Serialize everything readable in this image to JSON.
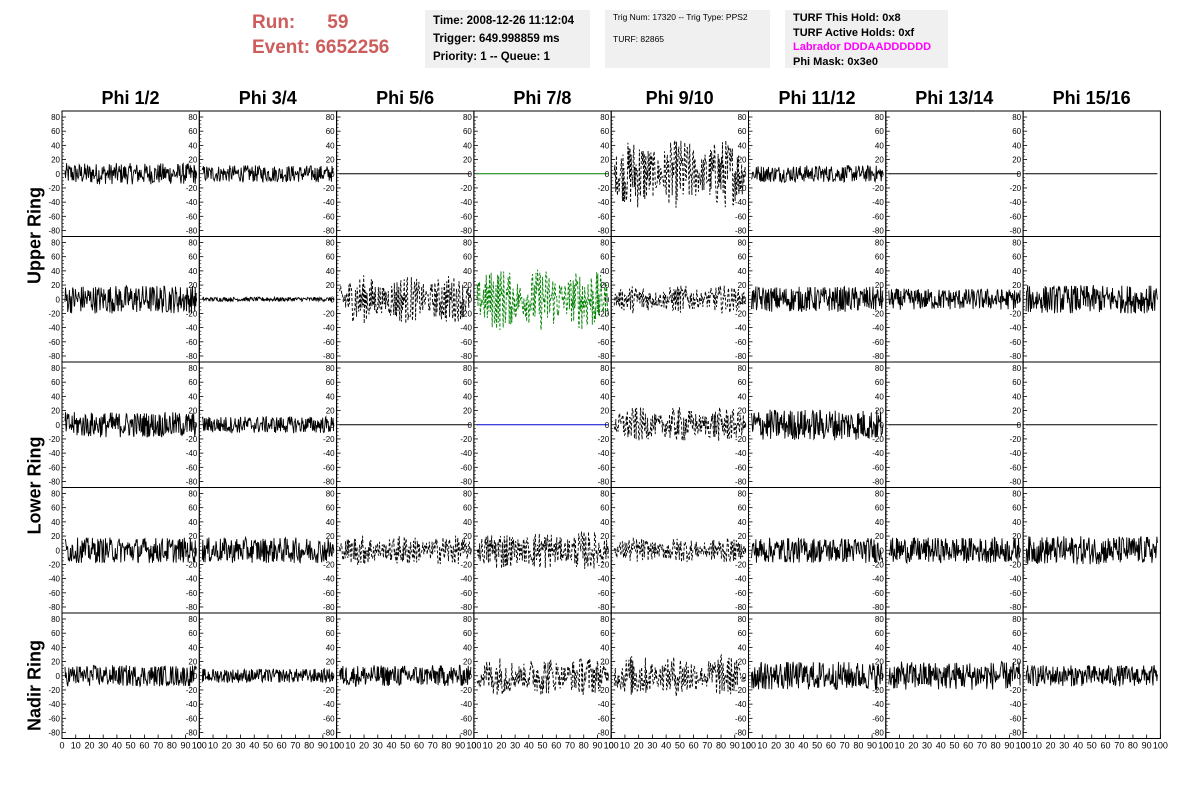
{
  "header": {
    "run_label": "Run:",
    "run_value": "59",
    "event_label": "Event:",
    "event_value": "6652256",
    "time_line": "Time: 2008-12-26 11:12:04",
    "trigger_line": "Trigger: 649.998859 ms",
    "priority_line": "Priority: 1 -- Queue: 1",
    "trig_num_line": "Trig Num: 17320 -- Trig Type: PPS2",
    "turf_line": "TURF: 82865",
    "turf_hold_line": "TURF This Hold: 0x8",
    "turf_active_line": "TURF Active Holds: 0xf",
    "labrador_line": "Labrador DDDAADDDDDD",
    "phi_mask_line": "Phi Mask: 0x3e0"
  },
  "columns": [
    "Phi 1/2",
    "Phi 3/4",
    "Phi 5/6",
    "Phi 7/8",
    "Phi 9/10",
    "Phi 11/12",
    "Phi 13/14",
    "Phi 15/16"
  ],
  "rows": [
    "Upper Ring",
    "Lower Ring",
    "Nadir Ring"
  ],
  "y_axis": {
    "ticks": [
      "80",
      "60",
      "40",
      "20",
      "0",
      "-20",
      "-40",
      "-60",
      "-80"
    ]
  },
  "x_axis": {
    "ticks": [
      "0",
      "10",
      "20",
      "30",
      "40",
      "50",
      "60",
      "70",
      "80",
      "90",
      "100"
    ]
  },
  "colors": {
    "run": "#cd5c5c",
    "labrador": "#ff00ff",
    "green_trace": "#008000",
    "blue_trace": "#0000cd"
  },
  "panels": [
    [
      {
        "style": "solid",
        "amp": 15
      },
      {
        "style": "solid",
        "amp": 12
      },
      {
        "style": "flat"
      },
      {
        "style": "flat-green"
      },
      {
        "style": "dashed",
        "amp": 50
      },
      {
        "style": "solid",
        "amp": 12
      },
      {
        "style": "flat"
      },
      {
        "style": "flat"
      }
    ],
    [
      {
        "style": "solid",
        "amp": 20
      },
      {
        "style": "solid",
        "amp": 3
      },
      {
        "style": "dashed",
        "amp": 35
      },
      {
        "style": "dashed-green",
        "amp": 45
      },
      {
        "style": "dashed",
        "amp": 20
      },
      {
        "style": "solid",
        "amp": 18
      },
      {
        "style": "solid",
        "amp": 15
      },
      {
        "style": "solid",
        "amp": 20
      }
    ],
    [
      {
        "style": "solid",
        "amp": 18
      },
      {
        "style": "solid",
        "amp": 12
      },
      {
        "style": "flat"
      },
      {
        "style": "flat-blue"
      },
      {
        "style": "dashed",
        "amp": 25
      },
      {
        "style": "solid",
        "amp": 22
      },
      {
        "style": "flat"
      },
      {
        "style": "flat"
      }
    ],
    [
      {
        "style": "solid",
        "amp": 18
      },
      {
        "style": "solid",
        "amp": 18
      },
      {
        "style": "dashed",
        "amp": 22
      },
      {
        "style": "dashed",
        "amp": 28
      },
      {
        "style": "dashed",
        "amp": 18
      },
      {
        "style": "solid",
        "amp": 18
      },
      {
        "style": "solid",
        "amp": 18
      },
      {
        "style": "solid",
        "amp": 20
      }
    ],
    [
      {
        "style": "solid",
        "amp": 15
      },
      {
        "style": "solid",
        "amp": 10
      },
      {
        "style": "solid",
        "amp": 15
      },
      {
        "style": "dashed",
        "amp": 28
      },
      {
        "style": "dashed",
        "amp": 30
      },
      {
        "style": "solid",
        "amp": 20
      },
      {
        "style": "solid",
        "amp": 20
      },
      {
        "style": "solid",
        "amp": 15
      }
    ]
  ]
}
